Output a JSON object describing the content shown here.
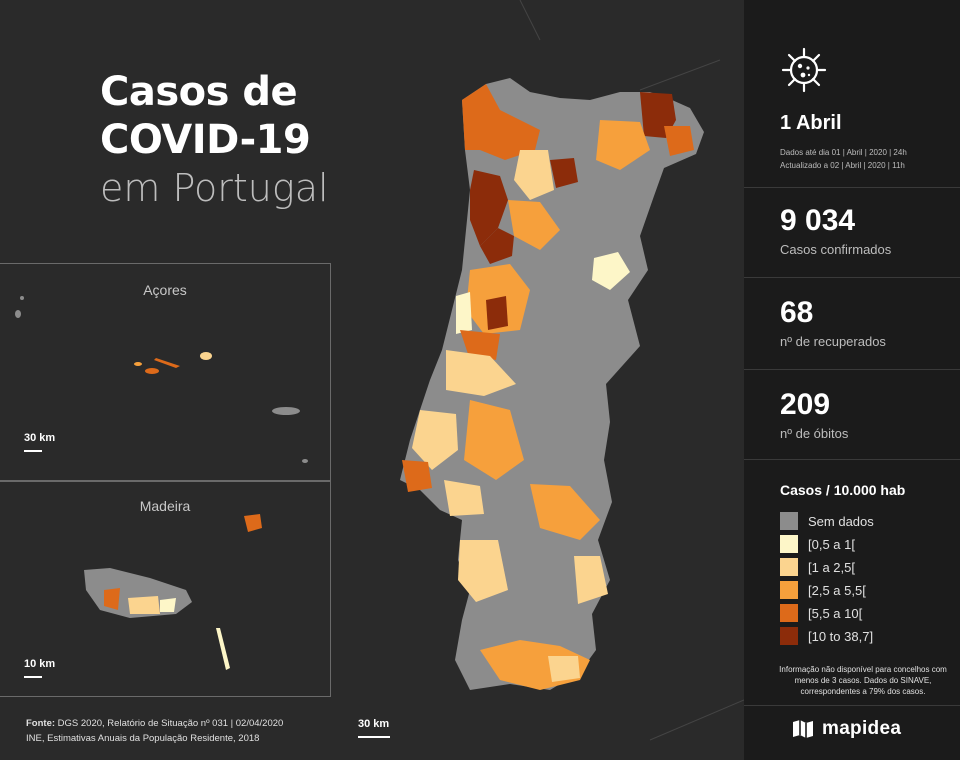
{
  "title": {
    "line1": "Casos de",
    "line2": "COVID-19",
    "line3": "em Portugal"
  },
  "insets": {
    "azores": {
      "label": "Açores",
      "scale": "30 km"
    },
    "madeira": {
      "label": "Madeira",
      "scale": "10 km"
    }
  },
  "main_scale": "30 km",
  "source": {
    "label": "Fonte:",
    "line1": " DGS 2020, Relatório de Situação nº 031 | 02/04/2020",
    "line2": "INE, Estimativas Anuais da População Residente, 2018"
  },
  "panel": {
    "icon": "virus-icon",
    "date": "1 Abril",
    "note1": "Dados até dia 01 | Abril | 2020 | 24h",
    "note2": "Actualizado a 02 | Abril | 2020 | 11h",
    "stats": [
      {
        "value": "9 034",
        "label": "Casos confirmados"
      },
      {
        "value": "68",
        "label": "nº de recuperados"
      },
      {
        "value": "209",
        "label": "nº de óbitos"
      }
    ],
    "legend_title": "Casos / 10.000 hab",
    "legend": [
      {
        "label": "Sem dados",
        "color": "#8c8c8c"
      },
      {
        "label": "[0,5 a 1[",
        "color": "#fdf6c8"
      },
      {
        "label": "[1 a 2,5[",
        "color": "#fbd48f"
      },
      {
        "label": "[2,5 a 5,5[",
        "color": "#f6a03c"
      },
      {
        "label": "[5,5 a 10[",
        "color": "#dd6a1a"
      },
      {
        "label": "[10 to 38,7]",
        "color": "#8c2c0a"
      }
    ],
    "legend_note": "Informação não disponível para concelhos com menos de 3 casos. Dados do SINAVE, correspondentes a 79% dos casos.",
    "brand": "mapidea"
  },
  "colors": {
    "no_data": "#8c8c8c",
    "c1": "#fdf6c8",
    "c2": "#fbd48f",
    "c3": "#f6a03c",
    "c4": "#dd6a1a",
    "c5": "#8c2c0a"
  }
}
